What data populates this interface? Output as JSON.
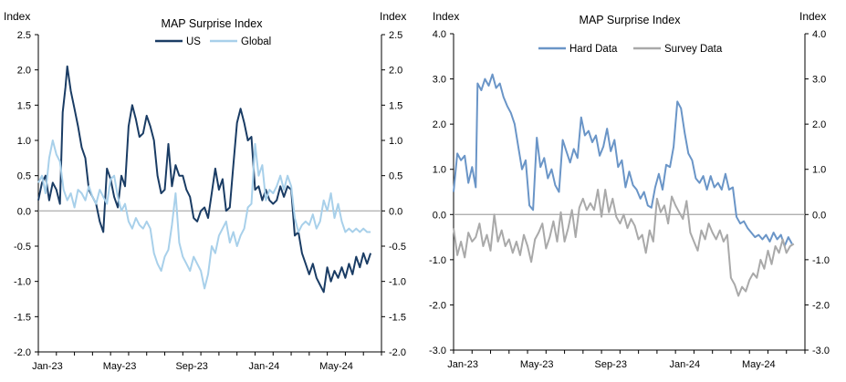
{
  "chart_data": [
    {
      "type": "line",
      "title": "MAP Surprise Index",
      "ylabel_left": "Index",
      "ylabel_right": "Index",
      "x_tick_labels": [
        "Jan-23",
        "May-23",
        "Sep-23",
        "Jan-24",
        "May-24"
      ],
      "x_range": [
        0,
        19
      ],
      "ylim": [
        -2.0,
        2.5
      ],
      "y_ticks": [
        -2.0,
        -1.5,
        -1.0,
        -0.5,
        0.0,
        0.5,
        1.0,
        1.5,
        2.0,
        2.5
      ],
      "y_tick_labels": [
        "-2.0",
        "-1.5",
        "-1.0",
        "-0.5",
        "0.0",
        "0.5",
        "1.0",
        "1.5",
        "2.0",
        "2.5"
      ],
      "legend_position": "top-center",
      "series": [
        {
          "name": "US",
          "color": "#1a3c64",
          "x": [
            0,
            0.2,
            0.4,
            0.6,
            0.8,
            1.0,
            1.2,
            1.35,
            1.5,
            1.6,
            1.8,
            2.0,
            2.2,
            2.4,
            2.6,
            2.8,
            3.0,
            3.2,
            3.4,
            3.6,
            3.8,
            4.0,
            4.2,
            4.4,
            4.6,
            4.8,
            5.0,
            5.2,
            5.4,
            5.6,
            5.8,
            6.0,
            6.2,
            6.4,
            6.6,
            6.8,
            7.0,
            7.2,
            7.4,
            7.6,
            7.8,
            8.0,
            8.2,
            8.4,
            8.6,
            8.8,
            9.0,
            9.2,
            9.4,
            9.6,
            9.8,
            10.0,
            10.2,
            10.4,
            10.6,
            10.8,
            11.0,
            11.2,
            11.4,
            11.6,
            11.8,
            12.0,
            12.2,
            12.4,
            12.6,
            12.8,
            13.0,
            13.2,
            13.4,
            13.6,
            13.8,
            14.0,
            14.2,
            14.4,
            14.6,
            14.8,
            15.0,
            15.2,
            15.4,
            15.6,
            15.8,
            16.0,
            16.2,
            16.4,
            16.6,
            16.8,
            17.0,
            17.2,
            17.4,
            17.6,
            17.8,
            18.0,
            18.2,
            18.4
          ],
          "values": [
            0.15,
            0.4,
            0.5,
            0.15,
            0.4,
            0.3,
            0.1,
            1.4,
            1.75,
            2.05,
            1.7,
            1.45,
            1.2,
            0.9,
            0.75,
            0.3,
            0.2,
            0.1,
            -0.15,
            -0.3,
            0.6,
            0.45,
            0.2,
            0.05,
            0.5,
            0.35,
            1.2,
            1.5,
            1.3,
            1.05,
            1.1,
            1.35,
            1.2,
            1.0,
            0.5,
            0.25,
            0.3,
            0.95,
            0.35,
            0.65,
            0.5,
            0.5,
            0.3,
            0.2,
            -0.1,
            -0.15,
            0.0,
            0.05,
            -0.1,
            0.25,
            0.6,
            0.3,
            0.45,
            0.0,
            0.05,
            0.65,
            1.25,
            1.45,
            1.25,
            1.0,
            1.05,
            0.3,
            0.35,
            0.15,
            0.3,
            0.15,
            0.1,
            0.15,
            0.35,
            0.2,
            0.35,
            0.3,
            -0.35,
            -0.3,
            -0.6,
            -0.75,
            -0.9,
            -0.75,
            -0.95,
            -1.05,
            -1.15,
            -0.8,
            -1.0,
            -0.85,
            -0.95,
            -0.8,
            -0.95,
            -0.75,
            -0.9,
            -0.65,
            -0.8,
            -0.6,
            -0.75,
            -0.6
          ]
        },
        {
          "name": "Global",
          "color": "#a8d0ea",
          "x": [
            0,
            0.2,
            0.4,
            0.6,
            0.8,
            1.0,
            1.2,
            1.4,
            1.6,
            1.8,
            2.0,
            2.2,
            2.4,
            2.6,
            2.8,
            3.0,
            3.2,
            3.4,
            3.6,
            3.8,
            4.0,
            4.2,
            4.4,
            4.6,
            4.8,
            5.0,
            5.2,
            5.4,
            5.6,
            5.8,
            6.0,
            6.2,
            6.4,
            6.6,
            6.8,
            7.0,
            7.2,
            7.4,
            7.6,
            7.8,
            8.0,
            8.2,
            8.4,
            8.6,
            8.8,
            9.0,
            9.2,
            9.4,
            9.6,
            9.8,
            10.0,
            10.2,
            10.4,
            10.6,
            10.8,
            11.0,
            11.2,
            11.4,
            11.6,
            11.8,
            12.0,
            12.2,
            12.4,
            12.6,
            12.8,
            13.0,
            13.2,
            13.4,
            13.6,
            13.8,
            14.0,
            14.2,
            14.4,
            14.6,
            14.8,
            15.0,
            15.2,
            15.4,
            15.6,
            15.8,
            16.0,
            16.2,
            16.4,
            16.6,
            16.8,
            17.0,
            17.2,
            17.4,
            17.6,
            17.8,
            18.0,
            18.2,
            18.4
          ],
          "values": [
            0.4,
            0.5,
            0.25,
            0.75,
            1.0,
            0.8,
            0.7,
            0.3,
            0.15,
            0.25,
            0.05,
            0.3,
            0.25,
            0.15,
            0.35,
            0.2,
            0.1,
            0.3,
            0.2,
            0.1,
            0.45,
            0.5,
            0.2,
            0.0,
            0.1,
            -0.15,
            -0.25,
            -0.1,
            -0.2,
            -0.25,
            -0.15,
            -0.25,
            -0.6,
            -0.75,
            -0.85,
            -0.65,
            -0.55,
            -0.2,
            0.25,
            -0.45,
            -0.65,
            -0.75,
            -0.85,
            -0.65,
            -0.75,
            -0.85,
            -1.1,
            -0.9,
            -0.5,
            -0.6,
            -0.35,
            -0.25,
            -0.15,
            -0.45,
            -0.3,
            -0.5,
            -0.35,
            -0.25,
            0.05,
            0.1,
            0.95,
            0.5,
            0.65,
            0.15,
            0.3,
            0.25,
            0.35,
            0.5,
            0.3,
            0.5,
            0.35,
            -0.1,
            -0.3,
            -0.2,
            -0.15,
            -0.2,
            -0.05,
            -0.25,
            -0.15,
            0.15,
            0.0,
            0.25,
            -0.1,
            0.1,
            -0.15,
            -0.3,
            -0.25,
            -0.3,
            -0.25,
            -0.3,
            -0.25,
            -0.3,
            -0.3
          ]
        }
      ]
    },
    {
      "type": "line",
      "title": "MAP Surprise Index",
      "ylabel_left": "Index",
      "ylabel_right": "Index",
      "x_tick_labels": [
        "Jan-23",
        "May-23",
        "Sep-23",
        "Jan-24",
        "May-24"
      ],
      "x_range": [
        0,
        19
      ],
      "ylim": [
        -3.0,
        4.0
      ],
      "y_ticks": [
        -3.0,
        -2.0,
        -1.0,
        0.0,
        1.0,
        2.0,
        3.0,
        4.0
      ],
      "y_tick_labels": [
        "-3.0",
        "-2.0",
        "-1.0",
        "0.0",
        "1.0",
        "2.0",
        "3.0",
        "4.0"
      ],
      "legend_position": "top-center",
      "series": [
        {
          "name": "Hard Data",
          "color": "#6a95c7",
          "x": [
            0,
            0.2,
            0.4,
            0.6,
            0.8,
            1.0,
            1.2,
            1.3,
            1.5,
            1.7,
            1.9,
            2.1,
            2.3,
            2.5,
            2.7,
            2.9,
            3.1,
            3.3,
            3.5,
            3.7,
            3.9,
            4.1,
            4.3,
            4.5,
            4.7,
            4.9,
            5.1,
            5.3,
            5.5,
            5.7,
            5.9,
            6.1,
            6.3,
            6.5,
            6.7,
            6.9,
            7.1,
            7.3,
            7.5,
            7.7,
            7.9,
            8.1,
            8.3,
            8.5,
            8.7,
            8.9,
            9.1,
            9.3,
            9.5,
            9.7,
            9.9,
            10.1,
            10.3,
            10.5,
            10.7,
            10.9,
            11.1,
            11.3,
            11.5,
            11.7,
            11.9,
            12.1,
            12.3,
            12.5,
            12.7,
            12.9,
            13.1,
            13.3,
            13.5,
            13.7,
            13.9,
            14.1,
            14.3,
            14.5,
            14.7,
            14.9,
            15.1,
            15.3,
            15.5,
            15.7,
            15.9,
            16.1,
            16.3,
            16.5,
            16.7,
            16.9,
            17.1,
            17.3,
            17.5,
            17.7,
            17.9,
            18.1,
            18.3
          ],
          "values": [
            0.5,
            1.35,
            1.2,
            1.3,
            0.7,
            1.05,
            0.6,
            2.9,
            2.75,
            3.0,
            2.85,
            3.1,
            2.8,
            2.9,
            2.6,
            2.4,
            2.25,
            2.0,
            1.5,
            1.0,
            1.2,
            0.2,
            0.1,
            1.7,
            1.05,
            1.25,
            0.8,
            1.0,
            0.65,
            0.5,
            1.65,
            1.4,
            1.15,
            1.45,
            1.25,
            2.15,
            1.75,
            1.85,
            1.6,
            1.75,
            1.3,
            1.5,
            1.9,
            1.4,
            1.65,
            1.05,
            1.2,
            0.6,
            0.95,
            0.65,
            0.55,
            0.35,
            0.5,
            0.2,
            0.15,
            0.6,
            0.9,
            0.55,
            1.1,
            1.05,
            1.5,
            2.5,
            2.35,
            1.8,
            1.35,
            1.2,
            0.8,
            0.7,
            0.85,
            0.55,
            0.85,
            0.6,
            0.7,
            0.55,
            0.9,
            0.55,
            0.6,
            -0.05,
            -0.2,
            -0.15,
            -0.3,
            -0.4,
            -0.5,
            -0.45,
            -0.55,
            -0.45,
            -0.6,
            -0.4,
            -0.55,
            -0.45,
            -0.7,
            -0.5,
            -0.65
          ]
        },
        {
          "name": "Survey Data",
          "color": "#a9a9a9",
          "x": [
            0,
            0.2,
            0.4,
            0.6,
            0.8,
            1.0,
            1.2,
            1.4,
            1.6,
            1.8,
            2.0,
            2.2,
            2.4,
            2.6,
            2.8,
            3.0,
            3.2,
            3.4,
            3.6,
            3.8,
            4.0,
            4.2,
            4.4,
            4.6,
            4.8,
            5.0,
            5.2,
            5.4,
            5.6,
            5.8,
            6.0,
            6.2,
            6.4,
            6.6,
            6.8,
            7.0,
            7.2,
            7.4,
            7.6,
            7.8,
            8.0,
            8.2,
            8.4,
            8.6,
            8.8,
            9.0,
            9.2,
            9.4,
            9.6,
            9.8,
            10.0,
            10.2,
            10.4,
            10.6,
            10.8,
            11.0,
            11.2,
            11.4,
            11.6,
            11.8,
            12.0,
            12.2,
            12.4,
            12.6,
            12.8,
            13.0,
            13.2,
            13.4,
            13.6,
            13.8,
            14.0,
            14.2,
            14.4,
            14.6,
            14.8,
            15.0,
            15.2,
            15.4,
            15.6,
            15.8,
            16.0,
            16.2,
            16.4,
            16.6,
            16.8,
            17.0,
            17.2,
            17.4,
            17.6,
            17.8,
            18.0,
            18.2,
            18.4
          ],
          "values": [
            -0.3,
            -0.9,
            -0.6,
            -0.95,
            -0.4,
            -0.6,
            -0.5,
            -0.2,
            -0.7,
            -0.45,
            -0.8,
            0.0,
            -0.6,
            -0.35,
            -0.7,
            -0.55,
            -0.85,
            -0.6,
            -0.9,
            -0.45,
            -0.7,
            -1.05,
            -0.55,
            -0.4,
            -0.2,
            -0.75,
            -0.5,
            -0.15,
            -0.6,
            0.05,
            -0.6,
            -0.3,
            0.1,
            -0.5,
            0.15,
            0.35,
            0.1,
            0.25,
            0.1,
            0.55,
            -0.05,
            0.55,
            0.05,
            0.35,
            -0.05,
            -0.2,
            0.0,
            -0.3,
            -0.1,
            -0.25,
            -0.55,
            -0.45,
            -0.85,
            -0.35,
            -0.6,
            0.35,
            0.05,
            0.2,
            -0.2,
            0.4,
            0.2,
            0.05,
            -0.1,
            0.3,
            -0.4,
            -0.6,
            -0.8,
            -0.35,
            -0.55,
            -0.2,
            -0.4,
            -0.55,
            -0.35,
            -0.6,
            -0.45,
            -1.4,
            -1.55,
            -1.8,
            -1.6,
            -1.7,
            -1.45,
            -1.3,
            -1.4,
            -1.0,
            -1.2,
            -0.8,
            -1.1,
            -0.7,
            -0.85,
            -0.55,
            -0.85,
            -0.7,
            -0.65
          ]
        }
      ]
    }
  ]
}
